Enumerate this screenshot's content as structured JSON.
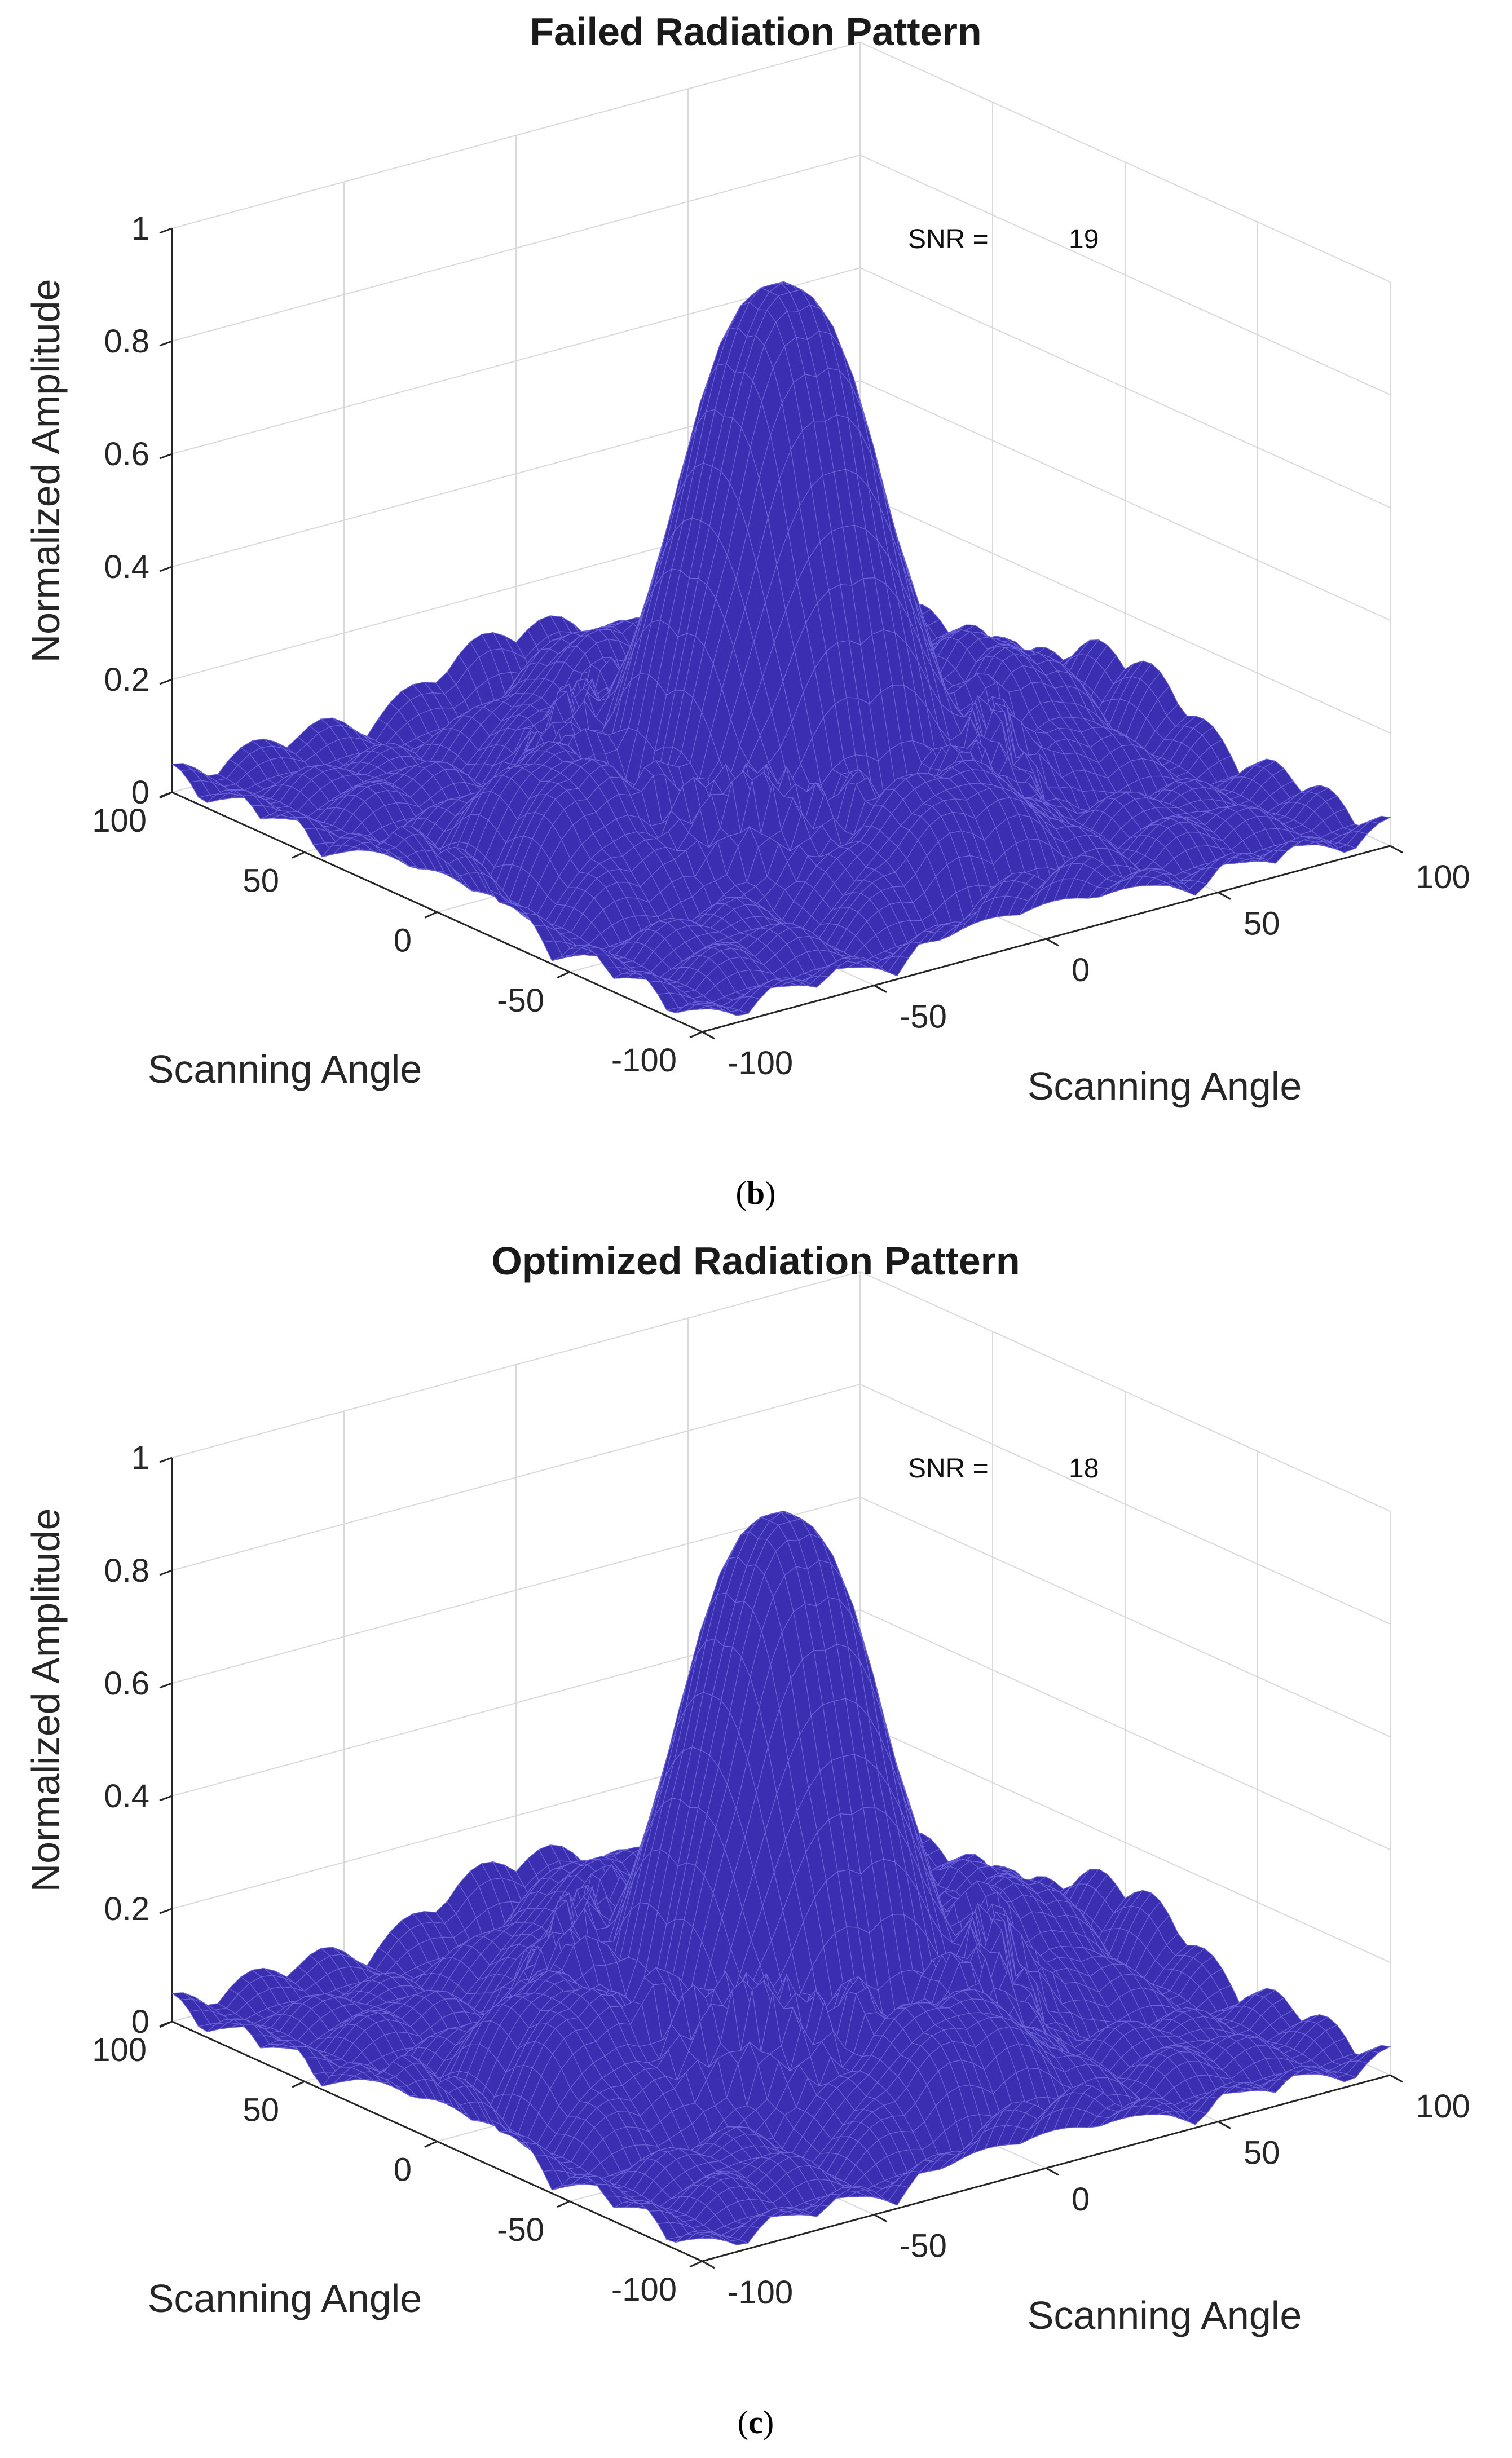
{
  "chart_data": [
    {
      "type": "surface",
      "panel": "b",
      "title": "Failed Radiation Pattern",
      "xlabel": "Scanning Angle",
      "ylabel": "Scanning Angle",
      "zlabel": "Normalized Amplitude",
      "xlim": [
        -100,
        100
      ],
      "ylim": [
        -100,
        100
      ],
      "zlim": [
        0,
        1
      ],
      "x_ticks": [
        "-100",
        "-50",
        "0",
        "50",
        "100"
      ],
      "y_ticks": [
        "-100",
        "-50",
        "0",
        "50",
        "100"
      ],
      "z_ticks": [
        "0",
        "0.2",
        "0.4",
        "0.6",
        "0.8",
        "1"
      ],
      "peak_amplitude": 0.95,
      "sidelobe_level": 0.2,
      "annotation": {
        "label": "SNR =",
        "value": "19"
      },
      "grid": true,
      "surface_color": "#3a2fb0",
      "caption": {
        "open": "(",
        "letter": "b",
        "close": ")"
      }
    },
    {
      "type": "surface",
      "panel": "c",
      "title": "Optimized Radiation Pattern",
      "xlabel": "Scanning Angle",
      "ylabel": "Scanning Angle",
      "zlabel": "Normalized Amplitude",
      "xlim": [
        -100,
        100
      ],
      "ylim": [
        -100,
        100
      ],
      "zlim": [
        0,
        1
      ],
      "x_ticks": [
        "-100",
        "-50",
        "0",
        "50",
        "100"
      ],
      "y_ticks": [
        "-100",
        "-50",
        "0",
        "50",
        "100"
      ],
      "z_ticks": [
        "0",
        "0.2",
        "0.4",
        "0.6",
        "0.8",
        "1"
      ],
      "peak_amplitude": 0.95,
      "sidelobe_level": 0.24,
      "annotation": {
        "label": "SNR =",
        "value": "18"
      },
      "grid": true,
      "surface_color": "#3a2fb0",
      "caption": {
        "open": "(",
        "letter": "c",
        "close": ")"
      }
    }
  ]
}
